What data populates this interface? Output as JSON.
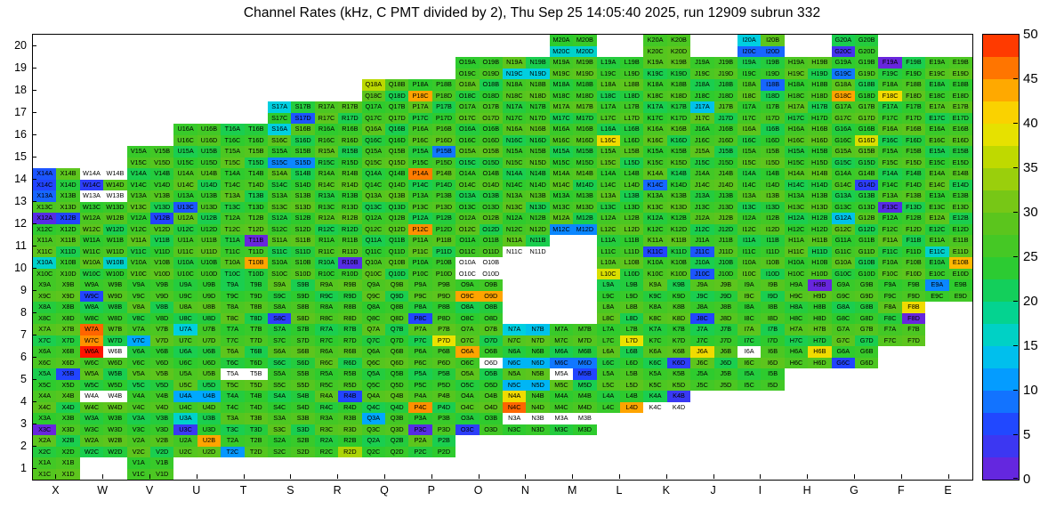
{
  "title": "Channel Rates (kHz, C PMT divided by 2), Thu Sep 25 14:05:40 2025, run 12909 subrun 332",
  "chart_data": {
    "type": "heatmap",
    "title": "Channel Rates (kHz, C PMT divided by 2), Thu Sep 25 14:05:40 2025, run 12909 subrun 332",
    "unit": "kHz",
    "x_axis_labels": [
      "X",
      "W",
      "V",
      "U",
      "T",
      "S",
      "R",
      "Q",
      "P",
      "O",
      "N",
      "M",
      "L",
      "K",
      "J",
      "I",
      "H",
      "G",
      "F",
      "E"
    ],
    "y_axis_labels": [
      1,
      2,
      3,
      4,
      5,
      6,
      7,
      8,
      9,
      10,
      11,
      12,
      13,
      14,
      15,
      16,
      17,
      18,
      19,
      20
    ],
    "cell_suffixes": [
      "A",
      "B",
      "C",
      "D"
    ],
    "colorbar": {
      "min": 0,
      "max": 50,
      "ticks": [
        0,
        5,
        10,
        15,
        20,
        25,
        30,
        35,
        40,
        45,
        50
      ],
      "segments": 20,
      "position": "right"
    },
    "palette": [
      [
        0,
        "#7a1fd4"
      ],
      [
        3,
        "#4433ee"
      ],
      [
        6,
        "#2244ff"
      ],
      [
        9,
        "#1177ff"
      ],
      [
        12,
        "#00a8ff"
      ],
      [
        15,
        "#00cfe0"
      ],
      [
        18,
        "#00d4a0"
      ],
      [
        21,
        "#10cf5f"
      ],
      [
        24,
        "#2ecb2e"
      ],
      [
        27,
        "#4cc722"
      ],
      [
        30,
        "#66c41a"
      ],
      [
        33,
        "#8fcc10"
      ],
      [
        36,
        "#bbd800"
      ],
      [
        39,
        "#eae200"
      ],
      [
        42,
        "#ffcc00"
      ],
      [
        45,
        "#ff9000"
      ],
      [
        48,
        "#ff5000"
      ],
      [
        50,
        "#ff1400"
      ]
    ],
    "zero_value_color": "#ffffff",
    "default_value_range": [
      22,
      29
    ],
    "rows": [
      {
        "row": 20,
        "modules": [
          "M",
          "K",
          "I",
          "G"
        ]
      },
      {
        "row": 19,
        "modules": [
          "O",
          "N",
          "M",
          "L",
          "K",
          "J",
          "I",
          "H",
          "G",
          "F",
          "E"
        ]
      },
      {
        "row": 18,
        "modules": [
          "Q",
          "P",
          "O",
          "N",
          "M",
          "L",
          "K",
          "J",
          "I",
          "H",
          "G",
          "F",
          "E"
        ]
      },
      {
        "row": 17,
        "modules": [
          "S",
          "R",
          "Q",
          "P",
          "O",
          "N",
          "M",
          "L",
          "K",
          "J",
          "I",
          "H",
          "G",
          "F",
          "E"
        ]
      },
      {
        "row": 16,
        "modules": [
          "U",
          "T",
          "S",
          "R",
          "Q",
          "P",
          "O",
          "N",
          "M",
          "L",
          "K",
          "J",
          "I",
          "H",
          "G",
          "F",
          "E"
        ]
      },
      {
        "row": 15,
        "modules": [
          "V",
          "U",
          "T",
          "S",
          "R",
          "Q",
          "P",
          "O",
          "N",
          "M",
          "L",
          "K",
          "J",
          "I",
          "H",
          "G",
          "F",
          "E"
        ]
      },
      {
        "row": 14,
        "modules": [
          "X",
          "W",
          "V",
          "U",
          "T",
          "S",
          "R",
          "Q",
          "P",
          "O",
          "N",
          "M",
          "L",
          "K",
          "J",
          "I",
          "H",
          "G",
          "F",
          "E"
        ]
      },
      {
        "row": 13,
        "modules": [
          "X",
          "W",
          "V",
          "U",
          "T",
          "S",
          "R",
          "Q",
          "P",
          "O",
          "N",
          "M",
          "L",
          "K",
          "J",
          "I",
          "H",
          "G",
          "F",
          "E"
        ]
      },
      {
        "row": 12,
        "modules": [
          "X",
          "W",
          "V",
          "U",
          "T",
          "S",
          "R",
          "Q",
          "P",
          "O",
          "N",
          "M",
          "L",
          "K",
          "J",
          "I",
          "H",
          "G",
          "F",
          "E"
        ]
      },
      {
        "row": 11,
        "modules": [
          "X",
          "W",
          "V",
          "U",
          "T",
          "S",
          "R",
          "Q",
          "P",
          "O",
          "N",
          "L",
          "K",
          "J",
          "I",
          "H",
          "G",
          "F",
          "E"
        ]
      },
      {
        "row": 10,
        "modules": [
          "X",
          "W",
          "V",
          "U",
          "T",
          "S",
          "R",
          "Q",
          "P",
          "O",
          "L",
          "K",
          "J",
          "I",
          "H",
          "G",
          "F",
          "E"
        ]
      },
      {
        "row": 9,
        "modules": [
          "X",
          "W",
          "V",
          "U",
          "T",
          "S",
          "R",
          "Q",
          "P",
          "O",
          "L",
          "K",
          "J",
          "I",
          "H",
          "G",
          "F",
          "E"
        ]
      },
      {
        "row": 8,
        "modules": [
          "X",
          "W",
          "V",
          "U",
          "T",
          "S",
          "R",
          "Q",
          "P",
          "O",
          "L",
          "K",
          "J",
          "I",
          "H",
          "G",
          "F"
        ]
      },
      {
        "row": 7,
        "modules": [
          "X",
          "W",
          "V",
          "U",
          "T",
          "S",
          "R",
          "Q",
          "P",
          "O",
          "N",
          "M",
          "L",
          "K",
          "J",
          "I",
          "H",
          "G",
          "F"
        ]
      },
      {
        "row": 6,
        "modules": [
          "X",
          "W",
          "V",
          "U",
          "T",
          "S",
          "R",
          "Q",
          "P",
          "O",
          "N",
          "M",
          "L",
          "K",
          "J",
          "I",
          "H",
          "G"
        ]
      },
      {
        "row": 5,
        "modules": [
          "X",
          "W",
          "V",
          "U",
          "T",
          "S",
          "R",
          "Q",
          "P",
          "O",
          "N",
          "M",
          "L",
          "K",
          "J",
          "I"
        ]
      },
      {
        "row": 4,
        "modules": [
          "X",
          "W",
          "V",
          "U",
          "T",
          "S",
          "R",
          "Q",
          "P",
          "O",
          "N",
          "M",
          "L",
          "K"
        ]
      },
      {
        "row": 3,
        "modules": [
          "X",
          "W",
          "V",
          "U",
          "T",
          "S",
          "R",
          "Q",
          "P",
          "O",
          "N",
          "M"
        ]
      },
      {
        "row": 2,
        "modules": [
          "X",
          "W",
          "V",
          "U",
          "T",
          "S",
          "R",
          "Q",
          "P"
        ]
      },
      {
        "row": 1,
        "modules": [
          "X",
          "V"
        ]
      }
    ],
    "cell_values_kHz": {
      "M20C": 16,
      "M20D": 16,
      "I20A": 15,
      "I20C": 8,
      "I20D": 8,
      "G20C": 3,
      "F19A": 1,
      "N19C": 15,
      "N19D": 15,
      "G19C": 9,
      "Q18A": 36,
      "P18C": 44,
      "I18B": 8,
      "G18C": 44,
      "F18C": 40,
      "S17A": 15,
      "S17D": 7,
      "J17A": 14,
      "S16A": 15,
      "L16C": 40,
      "G16D": 38,
      "S15C": 10,
      "S15D": 10,
      "P15B": 9,
      "X14A": 7,
      "X14C": 6,
      "W14A": 0,
      "W14B": 0,
      "W14C": 5,
      "P14A": 46,
      "K14C": 8,
      "G14D": 5,
      "X13A": 8,
      "W13A": 0,
      "W13B": 0,
      "U13C": 7,
      "F13C": 2,
      "X12A": 2,
      "X12B": 6,
      "V12B": 6,
      "M12C": 10,
      "M12D": 10,
      "P12C": 45,
      "G12A": 14,
      "T11B": 1,
      "N11C": 0,
      "N11D": 0,
      "K11C": 6,
      "J11C": 7,
      "E11C": 16,
      "X10A": 16,
      "W10B": 16,
      "T10B": 44,
      "R10B": 2,
      "O10A": 0,
      "O10B": 0,
      "O10C": 0,
      "O10D": 0,
      "L10C": 38,
      "J10C": 7,
      "E10B": 43,
      "W9C": 6,
      "O9C": 44,
      "O9D": 44,
      "H9B": 1,
      "E9A": 10,
      "S8C": 5,
      "P8C": 6,
      "J8C": 6,
      "F8B": 40,
      "F8D": 1,
      "W7A": 47,
      "W7C": 45,
      "V7C": 12,
      "U7A": 15,
      "P7D": 39,
      "N7A": 15,
      "N7B": 14,
      "L7D": 39,
      "W6A": 50,
      "W6B": 0,
      "O6A": 44,
      "O6D": 0,
      "N6C": 13,
      "N6D": 13,
      "M6C": 9,
      "M6D": 9,
      "K6D": 5,
      "J6A": 40,
      "I6A": 0,
      "H6B": 40,
      "G6C": 6,
      "X5B": 6,
      "T5A": 0,
      "T5B": 0,
      "N5C": 13,
      "N5D": 13,
      "M5A": 0,
      "M5B": 6,
      "W4A": 0,
      "W4B": 0,
      "U4A": 12,
      "U4B": 12,
      "R4B": 6,
      "P4C": 45,
      "N4A": 40,
      "N4C": 47,
      "L4D": 44,
      "K4B": 4,
      "K4C": 0,
      "K4D": 0,
      "X3C": 1,
      "U3A": 16,
      "U3C": 4,
      "Q3A": 12,
      "P3C": 2,
      "O3C": 5,
      "N3A": 0,
      "N3B": 0,
      "M3A": 0,
      "M3B": 0,
      "U2B": 44,
      "T2C": 11,
      "R2D": 35
    }
  }
}
